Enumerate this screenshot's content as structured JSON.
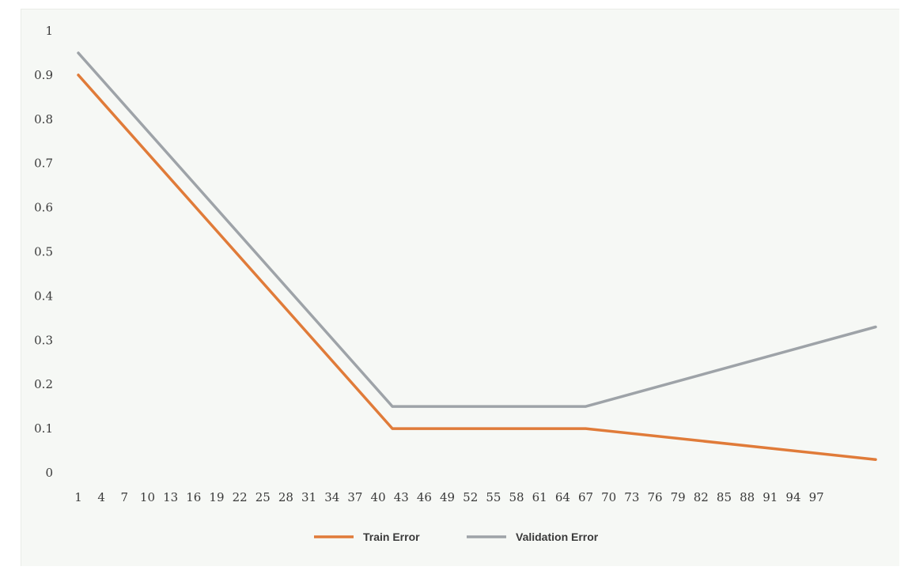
{
  "chart_data": {
    "type": "line",
    "title": "",
    "xlabel": "",
    "ylabel": "",
    "ylim": [
      0,
      1
    ],
    "y_ticks": [
      "0",
      "0.1",
      "0.2",
      "0.3",
      "0.4",
      "0.5",
      "0.6",
      "0.7",
      "0.8",
      "0.9",
      "1"
    ],
    "x_ticks": [
      "1",
      "4",
      "7",
      "10",
      "13",
      "16",
      "19",
      "22",
      "25",
      "28",
      "31",
      "34",
      "37",
      "40",
      "43",
      "46",
      "49",
      "52",
      "55",
      "58",
      "61",
      "64",
      "67",
      "70",
      "73",
      "76",
      "79",
      "82",
      "85",
      "88",
      "91",
      "94",
      "97"
    ],
    "xlim": [
      1,
      100
    ],
    "grid": false,
    "legend_position": "bottom",
    "series": [
      {
        "name": "Train Error",
        "color": "#e07b39",
        "x": [
          1,
          40,
          64,
          100
        ],
        "y": [
          0.9,
          0.1,
          0.1,
          0.03
        ]
      },
      {
        "name": "Validation Error",
        "color": "#9ea3a8",
        "x": [
          1,
          40,
          64,
          100
        ],
        "y": [
          0.95,
          0.15,
          0.15,
          0.33
        ]
      }
    ]
  }
}
